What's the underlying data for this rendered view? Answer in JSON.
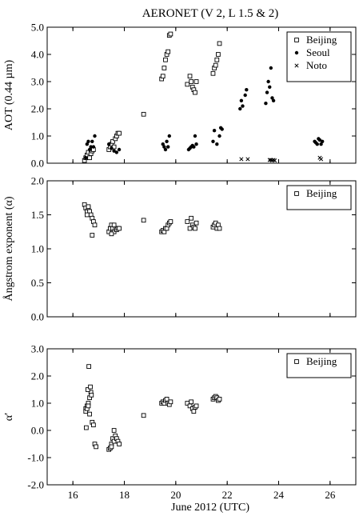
{
  "title": "AERONET  (V 2, L 1.5 & 2)",
  "xlabel": "June 2012 (UTC)",
  "chart_data": [
    {
      "type": "scatter",
      "ylabel": "AOT (0.44 µm)",
      "xlim": [
        15,
        27
      ],
      "ylim": [
        0,
        5
      ],
      "xticks": [
        16,
        18,
        20,
        22,
        24,
        26
      ],
      "yticks": [
        "0.0",
        "1.0",
        "2.0",
        "3.0",
        "4.0",
        "5.0"
      ],
      "legend_position": "top-right",
      "series": [
        {
          "name": "Beijing",
          "marker": "square",
          "x": [
            16.45,
            16.5,
            16.55,
            16.6,
            16.65,
            16.7,
            16.75,
            16.8,
            17.4,
            17.45,
            17.5,
            17.55,
            17.6,
            17.65,
            17.7,
            17.75,
            17.8,
            18.75,
            19.45,
            19.5,
            19.55,
            19.6,
            19.65,
            19.7,
            19.75,
            19.8,
            20.45,
            20.55,
            20.6,
            20.65,
            20.7,
            20.75,
            20.8,
            21.45,
            21.5,
            21.55,
            21.6,
            21.65,
            21.7
          ],
          "y": [
            0.1,
            0.2,
            0.3,
            0.4,
            0.2,
            0.35,
            0.45,
            0.5,
            0.5,
            0.6,
            0.7,
            0.8,
            0.6,
            0.9,
            1.0,
            1.1,
            1.1,
            1.8,
            3.1,
            3.2,
            3.5,
            3.8,
            4.0,
            4.1,
            4.7,
            4.75,
            2.9,
            3.2,
            3.0,
            2.8,
            2.7,
            2.6,
            3.0,
            3.3,
            3.5,
            3.6,
            3.8,
            4.0,
            4.4
          ]
        },
        {
          "name": "Seoul",
          "marker": "dot",
          "x": [
            16.5,
            16.55,
            16.6,
            16.65,
            16.7,
            16.75,
            16.8,
            16.85,
            17.4,
            17.5,
            17.6,
            17.7,
            17.8,
            19.5,
            19.55,
            19.6,
            19.65,
            19.7,
            19.75,
            20.5,
            20.55,
            20.6,
            20.65,
            20.7,
            20.75,
            20.8,
            21.45,
            21.5,
            21.6,
            21.7,
            21.75,
            21.8,
            22.5,
            22.55,
            22.6,
            22.7,
            22.75,
            23.5,
            23.55,
            23.6,
            23.65,
            23.7,
            23.75,
            23.8,
            25.4,
            25.45,
            25.5,
            25.55,
            25.6,
            25.65,
            25.7
          ],
          "y": [
            0.2,
            0.7,
            0.8,
            0.5,
            0.6,
            0.8,
            0.6,
            1.0,
            0.7,
            0.55,
            0.45,
            0.4,
            0.5,
            0.7,
            0.6,
            0.5,
            0.8,
            0.6,
            1.0,
            0.5,
            0.55,
            0.6,
            0.65,
            0.6,
            1.0,
            0.7,
            0.8,
            1.2,
            0.7,
            1.0,
            1.3,
            1.25,
            2.0,
            2.3,
            2.1,
            2.5,
            2.7,
            2.2,
            2.6,
            3.0,
            2.8,
            3.5,
            2.4,
            2.3,
            0.8,
            0.75,
            0.7,
            0.9,
            0.85,
            0.7,
            0.8
          ]
        },
        {
          "name": "Noto",
          "marker": "x",
          "x": [
            22.55,
            22.8,
            23.65,
            23.7,
            23.75,
            23.8,
            23.85,
            25.6,
            25.65
          ],
          "y": [
            0.15,
            0.15,
            0.12,
            0.12,
            0.1,
            0.12,
            0.1,
            0.2,
            0.15
          ]
        }
      ]
    },
    {
      "type": "scatter",
      "ylabel": "Ångstrom exponent (α)",
      "xlim": [
        15,
        27
      ],
      "ylim": [
        0,
        2
      ],
      "xticks": [
        16,
        18,
        20,
        22,
        24,
        26
      ],
      "yticks": [
        "0.0",
        "0.5",
        "1.0",
        "1.5",
        "2.0"
      ],
      "legend_position": "top-right",
      "series": [
        {
          "name": "Beijing",
          "marker": "square",
          "x": [
            16.45,
            16.5,
            16.55,
            16.6,
            16.65,
            16.7,
            16.75,
            16.8,
            16.85,
            16.55,
            16.6,
            16.75,
            17.4,
            17.45,
            17.5,
            17.55,
            17.6,
            17.65,
            17.7,
            17.75,
            17.8,
            17.5,
            17.6,
            18.75,
            19.45,
            19.5,
            19.55,
            19.6,
            19.65,
            19.7,
            19.75,
            19.8,
            20.45,
            20.55,
            20.6,
            20.65,
            20.7,
            20.75,
            20.8,
            21.45,
            21.5,
            21.55,
            21.6,
            21.65,
            21.7
          ],
          "y": [
            1.65,
            1.6,
            1.55,
            1.6,
            1.55,
            1.5,
            1.45,
            1.4,
            1.35,
            1.5,
            1.62,
            1.2,
            1.25,
            1.3,
            1.35,
            1.3,
            1.25,
            1.3,
            1.28,
            1.3,
            1.3,
            1.22,
            1.35,
            1.42,
            1.25,
            1.27,
            1.25,
            1.3,
            1.3,
            1.35,
            1.38,
            1.4,
            1.4,
            1.3,
            1.45,
            1.35,
            1.32,
            1.3,
            1.38,
            1.32,
            1.35,
            1.38,
            1.3,
            1.35,
            1.3
          ]
        }
      ]
    },
    {
      "type": "scatter",
      "ylabel": "α′",
      "xlim": [
        15,
        27
      ],
      "ylim": [
        -2,
        3
      ],
      "xticks": [
        16,
        18,
        20,
        22,
        24,
        26
      ],
      "yticks": [
        "-2.0",
        "-1.0",
        "0.0",
        "1.0",
        "2.0",
        "3.0"
      ],
      "legend_position": "top-right",
      "series": [
        {
          "name": "Beijing",
          "marker": "square",
          "x": [
            16.5,
            16.55,
            16.6,
            16.65,
            16.7,
            16.62,
            16.58,
            16.68,
            16.72,
            16.5,
            16.55,
            16.6,
            16.65,
            16.75,
            16.8,
            16.85,
            16.9,
            16.52,
            17.4,
            17.45,
            17.5,
            17.55,
            17.6,
            17.65,
            17.7,
            17.75,
            17.8,
            17.5,
            17.6,
            18.75,
            19.45,
            19.5,
            19.55,
            19.6,
            19.65,
            19.7,
            19.75,
            19.8,
            20.45,
            20.55,
            20.6,
            20.65,
            20.7,
            20.75,
            20.8,
            21.45,
            21.5,
            21.55,
            21.6,
            21.65,
            21.7
          ],
          "y": [
            0.8,
            0.9,
            1.0,
            1.2,
            1.4,
            2.35,
            1.5,
            1.6,
            1.3,
            0.7,
            0.8,
            0.9,
            0.6,
            0.3,
            0.2,
            -0.5,
            -0.6,
            0.1,
            -0.7,
            -0.65,
            -0.5,
            -0.3,
            -0.4,
            -0.2,
            -0.3,
            -0.4,
            -0.5,
            -0.6,
            0.0,
            0.55,
            1.0,
            1.05,
            1.0,
            1.1,
            1.15,
            1.0,
            0.95,
            1.05,
            1.0,
            0.9,
            1.05,
            0.8,
            0.7,
            0.85,
            0.9,
            1.15,
            1.2,
            1.25,
            1.2,
            1.1,
            1.15
          ]
        }
      ]
    }
  ]
}
